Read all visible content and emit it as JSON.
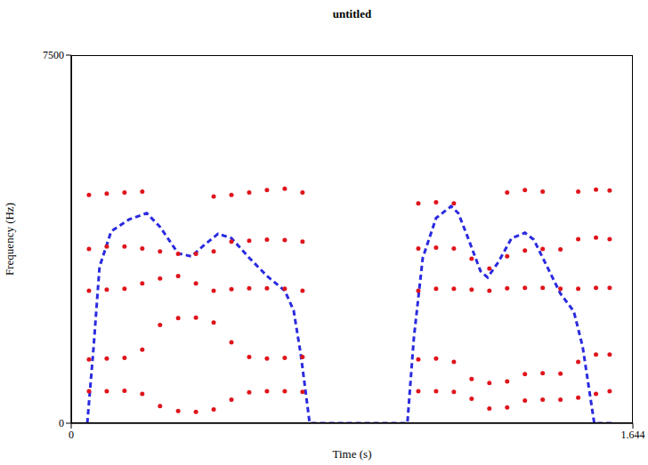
{
  "chart_data": {
    "type": "scatter",
    "title": "untitled",
    "x_label": "Time (s)",
    "y_label": "Frequency (Hz)",
    "xlim": [
      0,
      1.644
    ],
    "ylim": [
      0,
      7500
    ],
    "xticks": [
      0,
      1.644
    ],
    "yticks": [
      0,
      7500
    ],
    "grid": false,
    "series": [
      {
        "type": "scatter",
        "marker": "circle",
        "color": "#e0141c",
        "x": [
          0.052,
          0.104,
          0.156,
          0.208,
          0.26,
          0.313,
          0.365,
          0.417,
          0.469,
          0.521,
          0.573,
          0.625,
          0.677,
          1.016,
          1.068,
          1.12,
          1.172,
          1.224,
          1.276,
          1.328,
          1.38,
          1.432,
          1.484,
          1.536,
          1.576
        ],
        "values": [
          650,
          650,
          660,
          600,
          350,
          250,
          230,
          280,
          480,
          630,
          650,
          650,
          640,
          650,
          650,
          640,
          500,
          300,
          320,
          460,
          480,
          480,
          520,
          600,
          650
        ]
      },
      {
        "type": "scatter",
        "marker": "circle",
        "color": "#e0141c",
        "x": [
          0.052,
          0.104,
          0.156,
          0.208,
          0.26,
          0.313,
          0.365,
          0.417,
          0.469,
          0.521,
          0.573,
          0.625,
          0.677,
          1.016,
          1.068,
          1.12,
          1.172,
          1.224,
          1.276,
          1.328,
          1.38,
          1.432,
          1.484,
          1.536,
          1.576
        ],
        "values": [
          1300,
          1320,
          1330,
          1500,
          2000,
          2140,
          2150,
          2050,
          1650,
          1350,
          1320,
          1330,
          1350,
          1300,
          1320,
          1250,
          900,
          820,
          850,
          1000,
          1020,
          1010,
          1250,
          1400,
          1400
        ]
      },
      {
        "type": "scatter",
        "marker": "circle",
        "color": "#e0141c",
        "x": [
          0.052,
          0.104,
          0.156,
          0.208,
          0.26,
          0.313,
          0.365,
          0.417,
          0.469,
          0.521,
          0.573,
          0.625,
          0.677,
          1.016,
          1.068,
          1.12,
          1.172,
          1.224,
          1.276,
          1.328,
          1.38,
          1.432,
          1.484,
          1.536,
          1.576
        ],
        "values": [
          2700,
          2720,
          2740,
          2850,
          2950,
          3000,
          2850,
          2700,
          2730,
          2750,
          2750,
          2740,
          2700,
          2700,
          2740,
          2740,
          2720,
          2700,
          2750,
          2760,
          2760,
          2740,
          2740,
          2760,
          2760
        ]
      },
      {
        "type": "scatter",
        "marker": "circle",
        "color": "#e0141c",
        "x": [
          0.052,
          0.104,
          0.156,
          0.208,
          0.26,
          0.313,
          0.365,
          0.417,
          0.469,
          0.521,
          0.573,
          0.625,
          0.677,
          1.016,
          1.068,
          1.12,
          1.172,
          1.224,
          1.276,
          1.328,
          1.38,
          1.432,
          1.484,
          1.536,
          1.576
        ],
        "values": [
          3550,
          3600,
          3600,
          3560,
          3500,
          3450,
          3450,
          3500,
          3700,
          3720,
          3740,
          3730,
          3700,
          3560,
          3580,
          3560,
          3350,
          3150,
          3400,
          3520,
          3550,
          3540,
          3750,
          3780,
          3750
        ]
      },
      {
        "type": "scatter",
        "marker": "circle",
        "color": "#e0141c",
        "x": [
          0.052,
          0.104,
          0.156,
          0.208,
          0.417,
          0.469,
          0.521,
          0.573,
          0.625,
          0.677,
          1.016,
          1.068,
          1.12,
          1.276,
          1.328,
          1.38,
          1.484,
          1.536,
          1.576
        ],
        "values": [
          4650,
          4680,
          4700,
          4720,
          4620,
          4650,
          4700,
          4750,
          4780,
          4700,
          4480,
          4500,
          4480,
          4700,
          4750,
          4720,
          4720,
          4760,
          4740
        ]
      },
      {
        "type": "line",
        "line_style": "dashed",
        "color": "#2a2ae0",
        "x": [
          0.047,
          0.065,
          0.083,
          0.117,
          0.169,
          0.221,
          0.26,
          0.313,
          0.352,
          0.391,
          0.43,
          0.469,
          0.521,
          0.573,
          0.625,
          0.651,
          0.672,
          0.698,
          0.984,
          1.003,
          1.029,
          1.068,
          1.112,
          1.133,
          1.159,
          1.198,
          1.219,
          1.25,
          1.289,
          1.328,
          1.354,
          1.393,
          1.432,
          1.471,
          1.497,
          1.531,
          1.589
        ],
        "values": [
          0,
          1500,
          3190,
          3910,
          4150,
          4280,
          4000,
          3460,
          3400,
          3640,
          3860,
          3770,
          3370,
          3000,
          2700,
          2300,
          1400,
          0,
          0,
          1740,
          3370,
          4180,
          4420,
          4280,
          3820,
          3100,
          2970,
          3280,
          3770,
          3880,
          3740,
          3190,
          2640,
          2280,
          1560,
          0,
          0
        ]
      }
    ]
  }
}
